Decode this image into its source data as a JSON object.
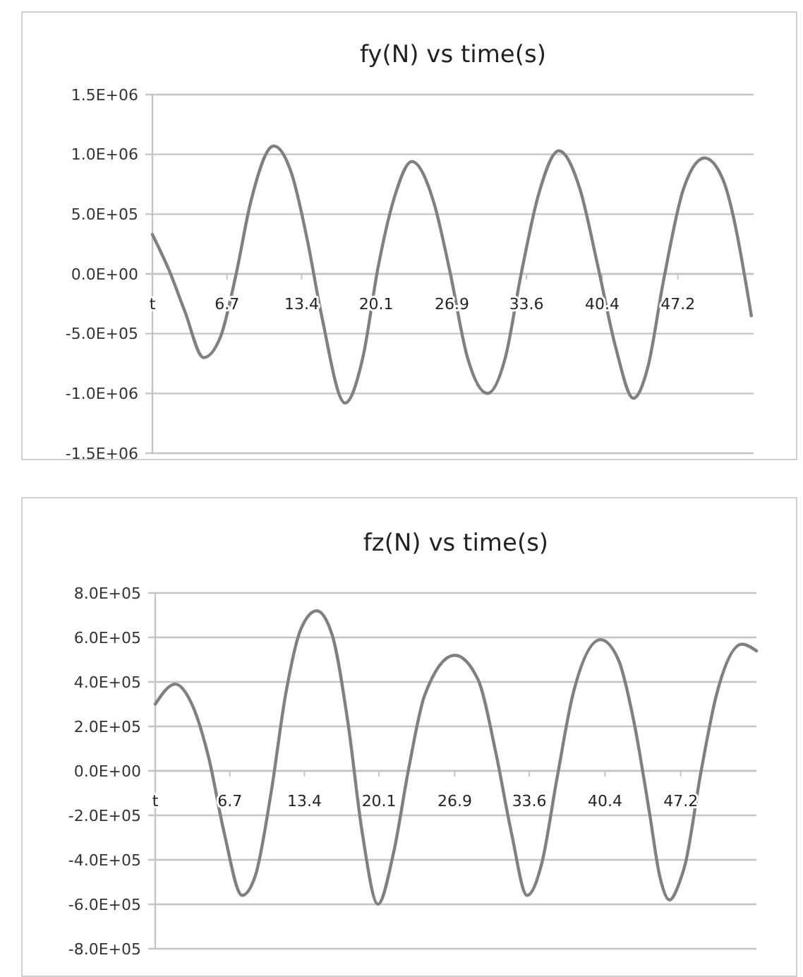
{
  "chart_data": [
    {
      "type": "line",
      "title": "fy(N) vs time(s)",
      "xlim": [
        0,
        54
      ],
      "xticks": [
        {
          "value": 0,
          "label": "t"
        },
        {
          "value": 6.7,
          "label": "6.7"
        },
        {
          "value": 13.4,
          "label": "13.4"
        },
        {
          "value": 20.1,
          "label": "20.1"
        },
        {
          "value": 26.9,
          "label": "26.9"
        },
        {
          "value": 33.6,
          "label": "33.6"
        },
        {
          "value": 40.4,
          "label": "40.4"
        },
        {
          "value": 47.2,
          "label": "47.2"
        }
      ],
      "ylim": [
        -1500000,
        1500000
      ],
      "yticks": [
        {
          "value": -1500000,
          "label": "-1.5E+06"
        },
        {
          "value": -1000000,
          "label": "-1.0E+06"
        },
        {
          "value": -500000,
          "label": "-5.0E+05"
        },
        {
          "value": 0,
          "label": "0.0E+00"
        },
        {
          "value": 500000,
          "label": "5.0E+05"
        },
        {
          "value": 1000000,
          "label": "1.0E+06"
        },
        {
          "value": 1500000,
          "label": "1.5E+06"
        }
      ],
      "grid": "y",
      "marker": "none",
      "line_style": "solid",
      "series": [
        {
          "color": "#808080",
          "x": [
            0,
            1.5,
            2.9,
            4.6,
            6.1,
            7.5,
            8.8,
            10.9,
            12.5,
            13.9,
            15.2,
            17.3,
            18.9,
            20.3,
            21.7,
            23.3,
            25.3,
            26.7,
            28.3,
            30.1,
            31.7,
            33.1,
            34.7,
            36.5,
            38.4,
            40.0,
            41.6,
            43.2,
            44.5,
            45.9,
            47.7,
            49.6,
            51.2,
            53.8
          ],
          "values": [
            330000,
            30000,
            -310000,
            -700000,
            -530000,
            -10000,
            590000,
            1070000,
            840000,
            290000,
            -350000,
            -1080000,
            -700000,
            70000,
            630000,
            940000,
            590000,
            30000,
            -700000,
            -1000000,
            -700000,
            -10000,
            670000,
            1030000,
            710000,
            70000,
            -610000,
            -1040000,
            -780000,
            -60000,
            710000,
            970000,
            800000,
            -350000
          ]
        }
      ]
    },
    {
      "type": "line",
      "title": "fz(N) vs time(s)",
      "xlim": [
        0,
        54
      ],
      "xticks": [
        {
          "value": 0,
          "label": "t"
        },
        {
          "value": 6.7,
          "label": "6.7"
        },
        {
          "value": 13.4,
          "label": "13.4"
        },
        {
          "value": 20.1,
          "label": "20.1"
        },
        {
          "value": 26.9,
          "label": "26.9"
        },
        {
          "value": 33.6,
          "label": "33.6"
        },
        {
          "value": 40.4,
          "label": "40.4"
        },
        {
          "value": 47.2,
          "label": "47.2"
        }
      ],
      "ylim": [
        -800000,
        800000
      ],
      "yticks": [
        {
          "value": -800000,
          "label": "-8.0E+05"
        },
        {
          "value": -600000,
          "label": "-6.0E+05"
        },
        {
          "value": -400000,
          "label": "-4.0E+05"
        },
        {
          "value": -200000,
          "label": "-2.0E+05"
        },
        {
          "value": 0,
          "label": "0.0E+00"
        },
        {
          "value": 200000,
          "label": "2.0E+05"
        },
        {
          "value": 400000,
          "label": "4.0E+05"
        },
        {
          "value": 600000,
          "label": "6.0E+05"
        },
        {
          "value": 800000,
          "label": "8.0E+05"
        }
      ],
      "grid": "y",
      "marker": "none",
      "line_style": "solid",
      "series": [
        {
          "color": "#808080",
          "x": [
            0,
            1.8,
            3.2,
            4.8,
            6.2,
            7.8,
            9.0,
            10.4,
            11.7,
            13.1,
            14.5,
            15.9,
            17.3,
            18.6,
            20.0,
            21.4,
            22.8,
            24.2,
            26.9,
            29.0,
            30.6,
            32.0,
            33.4,
            34.7,
            36.1,
            37.5,
            40.0,
            41.6,
            43.0,
            44.4,
            45.3,
            46.2,
            47.1,
            47.6,
            49.0,
            50.4,
            52.7,
            54.0
          ],
          "values": [
            300000,
            390000,
            310000,
            60000,
            -280000,
            -560000,
            -470000,
            -100000,
            340000,
            640000,
            720000,
            610000,
            220000,
            -280000,
            -600000,
            -370000,
            20000,
            340000,
            520000,
            410000,
            80000,
            -280000,
            -560000,
            -420000,
            -30000,
            340000,
            590000,
            500000,
            220000,
            -190000,
            -470000,
            -580000,
            -500000,
            -420000,
            -10000,
            340000,
            570000,
            540000
          ]
        }
      ]
    }
  ]
}
